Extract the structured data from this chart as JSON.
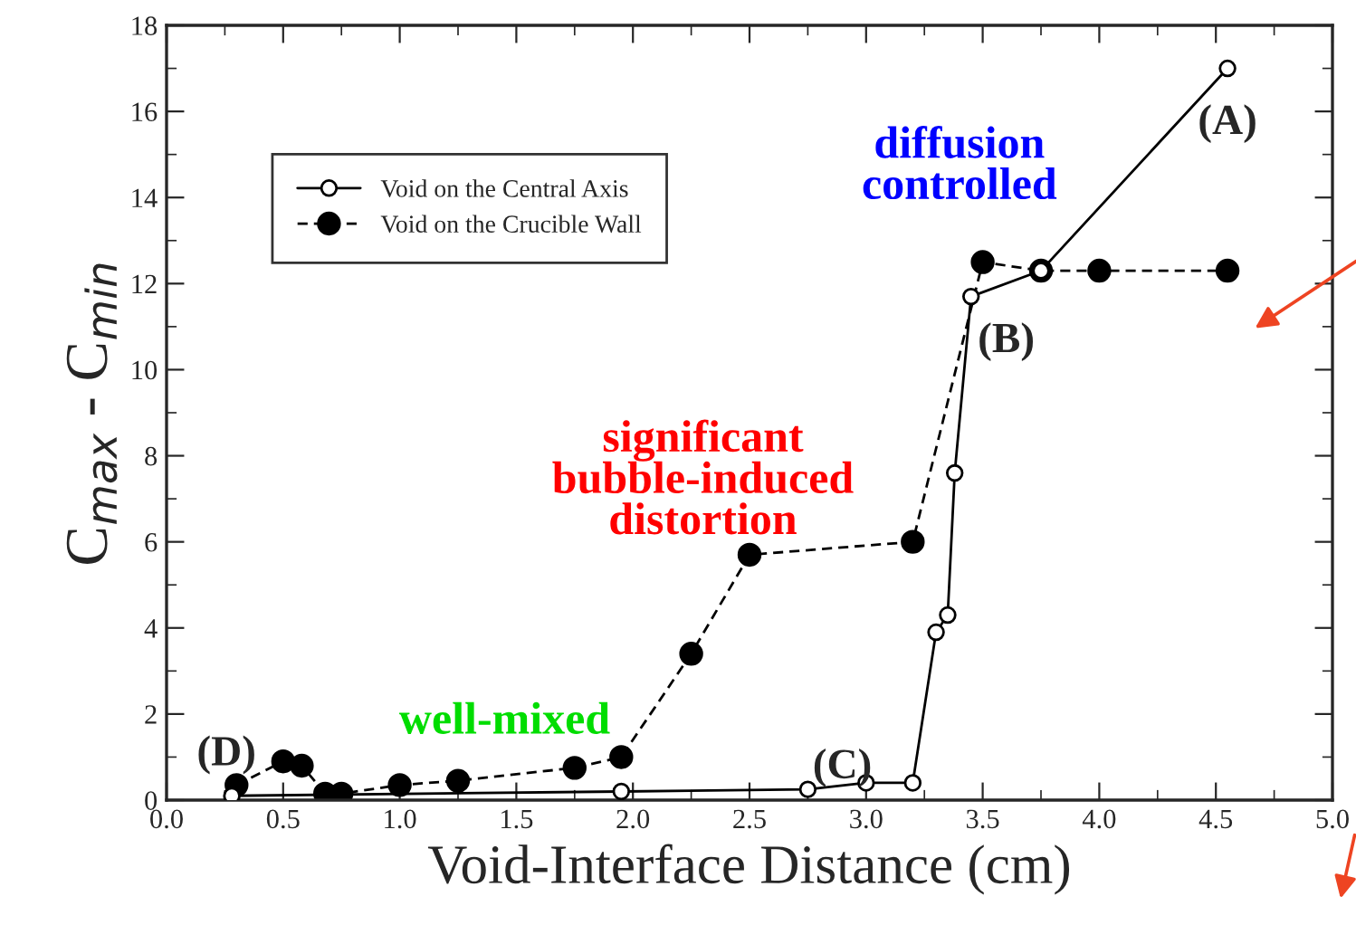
{
  "chart_data": {
    "type": "line",
    "xlabel": "Void-Interface Distance (cm)",
    "ylabel": "C$_{max}$ - C$_{min}$",
    "xlim": [
      0.0,
      5.0
    ],
    "xticks": [
      {
        "value": 0,
        "label": "0.0"
      },
      0.5,
      {
        "value": 1,
        "label": "1.0"
      },
      1.5,
      {
        "value": 2,
        "label": "2.0"
      },
      2.5,
      {
        "value": 3,
        "label": "3.0"
      },
      3.5,
      {
        "value": 4,
        "label": "4.0"
      },
      4.5,
      {
        "value": 5,
        "label": "5.0"
      }
    ],
    "ylim": [
      0,
      18
    ],
    "yticks": [
      0,
      2,
      4,
      6,
      8,
      10,
      12,
      14,
      16,
      18
    ],
    "grid": false,
    "legend": "top left",
    "marker": "circle",
    "series": [
      {
        "name": "Void on the Central Axis",
        "color": "#000000",
        "line_style": "solid",
        "x": [
          0.28,
          1.95,
          2.75,
          3.0,
          3.2,
          3.3,
          3.35,
          3.38,
          3.45,
          3.75,
          4.55
        ],
        "values": [
          0.1,
          0.2,
          0.25,
          0.4,
          0.4,
          3.9,
          4.3,
          7.6,
          11.7,
          12.3,
          17.0
        ]
      },
      {
        "name": "Void on the Crucible Wall",
        "color": "#000000",
        "line_style": "dashed",
        "x": [
          0.3,
          0.5,
          0.58,
          0.68,
          0.75,
          1.0,
          1.25,
          1.75,
          1.95,
          2.25,
          2.5,
          3.2,
          3.5,
          3.75,
          4.0,
          4.55
        ],
        "values": [
          0.35,
          0.9,
          0.8,
          0.15,
          0.15,
          0.35,
          0.45,
          0.75,
          1.0,
          3.4,
          5.7,
          6.0,
          12.5,
          12.3,
          12.3,
          12.3
        ]
      }
    ],
    "annotations": [
      {
        "text": "(A)",
        "x": 4.55,
        "y": 17.0
      },
      {
        "text": "(B)",
        "x": 3.45,
        "y": 11.7
      },
      {
        "text": "(C)",
        "x": 3.2,
        "y": 0.4
      },
      {
        "text": "(D)",
        "x": 0.3,
        "y": 0.35
      },
      "diffusion\ncontrolled",
      "significant\nbubble-induced\ndistortion",
      "well-mixed"
    ]
  }
}
